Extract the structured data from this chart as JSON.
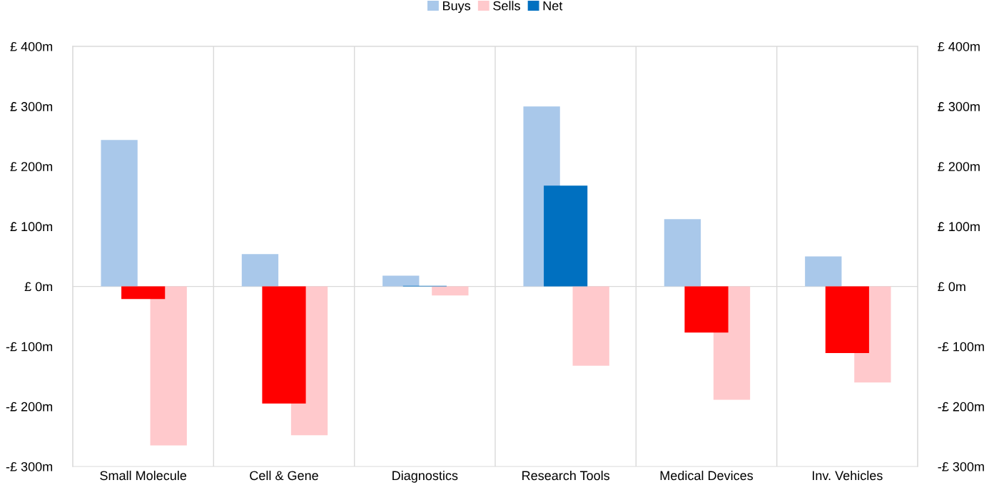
{
  "chart_data": {
    "type": "bar",
    "categories": [
      "Small Molecule",
      "Cell & Gene",
      "Diagnostics",
      "Research Tools",
      "Medical Devices",
      "Inv. Vehicles"
    ],
    "series": [
      {
        "name": "Buys",
        "color": "#a9c8ea",
        "values": [
          244,
          54,
          18,
          300,
          112,
          50
        ]
      },
      {
        "name": "Sells",
        "color": "#ffc9cc",
        "values": [
          -265,
          -248,
          -15,
          -132,
          -189,
          -160
        ]
      },
      {
        "name": "Net",
        "color": "#0070c0",
        "values": [
          -21,
          -195,
          1,
          168,
          -77,
          -111
        ],
        "colors": [
          "#ff0000",
          "#ff0000",
          "#0070c0",
          "#0070c0",
          "#ff0000",
          "#ff0000"
        ]
      }
    ],
    "ylim": [
      -300,
      400
    ],
    "yticks": [
      {
        "value": -300,
        "label": "-£ 300m"
      },
      {
        "value": -200,
        "label": "-£ 200m"
      },
      {
        "value": -100,
        "label": "-£ 100m"
      },
      {
        "value": 0,
        "label": "£ 0m"
      },
      {
        "value": 100,
        "label": "£ 100m"
      },
      {
        "value": 200,
        "label": "£ 200m"
      },
      {
        "value": 300,
        "label": "£ 300m"
      },
      {
        "value": 400,
        "label": "£ 400m"
      }
    ],
    "y2lim": [
      -300,
      400
    ],
    "y2ticks": [
      {
        "value": -300,
        "label": "-£ 300m"
      },
      {
        "value": -200,
        "label": "-£ 200m"
      },
      {
        "value": -100,
        "label": "-£ 100m"
      },
      {
        "value": 0,
        "label": "£ 0m"
      },
      {
        "value": 100,
        "label": "£ 100m"
      },
      {
        "value": 200,
        "label": "£ 200m"
      },
      {
        "value": 300,
        "label": "£ 300m"
      },
      {
        "value": 400,
        "label": "£ 400m"
      }
    ],
    "grid": "x",
    "legend": "top"
  }
}
